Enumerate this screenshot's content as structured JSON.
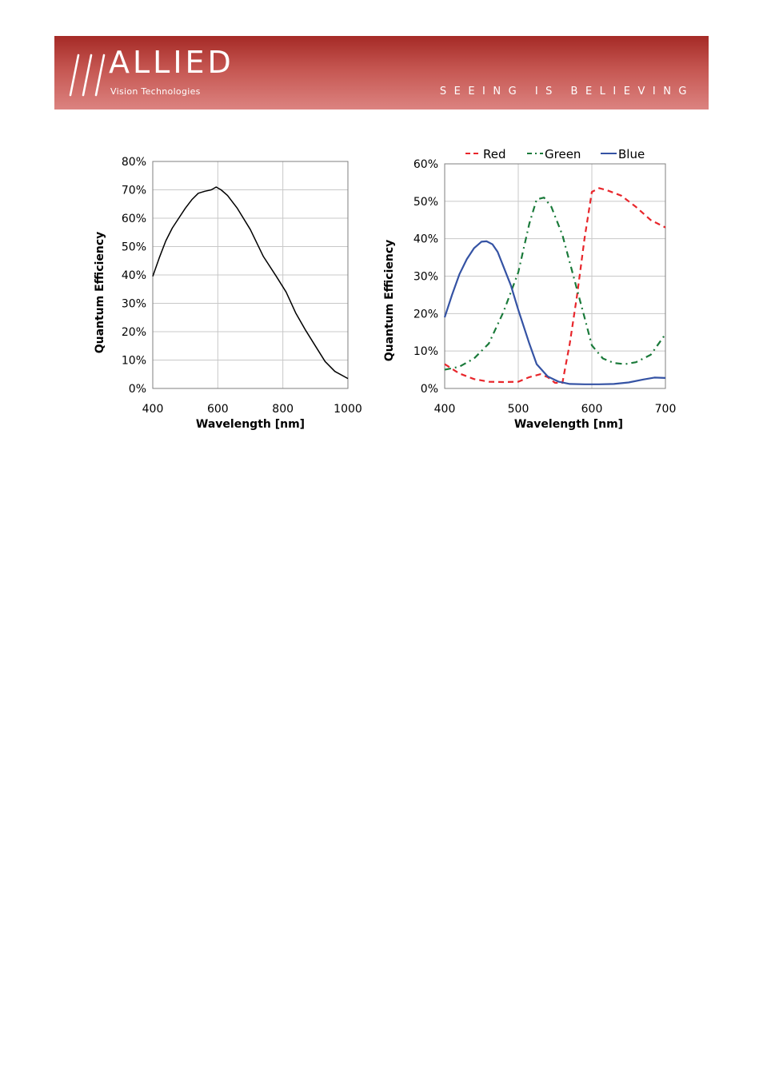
{
  "header": {
    "brand": "ALLIED",
    "brand_sub": "Vision Technologies",
    "tagline": "SEEING IS BELIEVING",
    "logo_mark": "triple-slash-logo"
  },
  "chart_data": [
    {
      "type": "line",
      "xlabel": "Wavelength [nm]",
      "ylabel": "Quantum Efficiency",
      "xlim": [
        400,
        1000
      ],
      "ylim": [
        0,
        80
      ],
      "x_ticks": [
        "400",
        "600",
        "800",
        "1000"
      ],
      "y_ticks": [
        "0%",
        "10%",
        "20%",
        "30%",
        "40%",
        "50%",
        "60%",
        "70%",
        "80%"
      ],
      "grid": true,
      "legend": "none",
      "series": [
        {
          "color": "#000000",
          "style": "solid",
          "x": [
            400,
            420,
            440,
            460,
            480,
            500,
            520,
            540,
            560,
            580,
            595,
            610,
            630,
            660,
            700,
            740,
            780,
            810,
            840,
            870,
            900,
            930,
            960,
            1000
          ],
          "y": [
            39.5,
            46,
            52,
            56.5,
            60,
            63.5,
            66.5,
            68.8,
            69.5,
            70,
            71,
            70,
            68,
            63.5,
            56,
            46.5,
            39.5,
            34,
            26.5,
            20.5,
            15,
            9.5,
            6,
            3.5
          ]
        }
      ]
    },
    {
      "type": "line",
      "xlabel": "Wavelength [nm]",
      "ylabel": "Quantum Efficiency",
      "xlim": [
        400,
        700
      ],
      "ylim": [
        0,
        60
      ],
      "x_ticks": [
        "400",
        "500",
        "600",
        "700"
      ],
      "y_ticks": [
        "0%",
        "10%",
        "20%",
        "30%",
        "40%",
        "50%",
        "60%"
      ],
      "grid": true,
      "legend": "top",
      "series": [
        {
          "name": "Red",
          "color": "#e8262b",
          "style": "dashed",
          "x": [
            400,
            420,
            440,
            460,
            480,
            500,
            515,
            530,
            540,
            550,
            560,
            570,
            580,
            590,
            600,
            610,
            620,
            640,
            660,
            680,
            700
          ],
          "y": [
            6.5,
            4,
            2.5,
            1.8,
            1.7,
            1.8,
            3,
            3.8,
            3,
            1.5,
            1.5,
            12,
            25,
            40,
            52.5,
            53.5,
            53,
            51.5,
            48.5,
            45,
            43
          ]
        },
        {
          "name": "Green",
          "color": "#1a7a3a",
          "style": "dashdot",
          "x": [
            400,
            420,
            440,
            460,
            480,
            500,
            515,
            525,
            535,
            545,
            560,
            575,
            590,
            600,
            615,
            630,
            645,
            660,
            680,
            700
          ],
          "y": [
            5,
            5.8,
            8,
            12,
            20.5,
            31,
            44,
            50.5,
            51,
            48.5,
            41,
            30,
            19,
            11.5,
            8,
            6.8,
            6.5,
            7,
            9,
            14.5
          ]
        },
        {
          "name": "Blue",
          "color": "#3553a4",
          "style": "solid",
          "x": [
            400,
            410,
            420,
            430,
            440,
            450,
            457,
            465,
            472,
            480,
            490,
            500,
            515,
            525,
            540,
            555,
            570,
            590,
            610,
            630,
            650,
            670,
            685,
            700
          ],
          "y": [
            19,
            25,
            30.5,
            34.5,
            37.5,
            39.2,
            39.3,
            38.5,
            36.5,
            32.5,
            27.5,
            21,
            12,
            6.5,
            3.2,
            1.8,
            1.2,
            1.1,
            1.1,
            1.2,
            1.6,
            2.4,
            2.9,
            2.8
          ]
        }
      ]
    }
  ]
}
